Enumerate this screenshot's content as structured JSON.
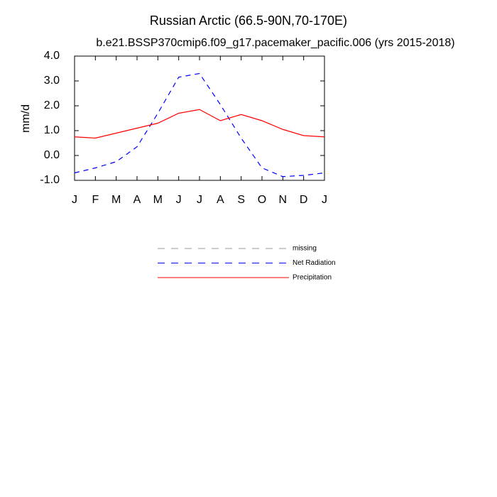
{
  "chart_data": {
    "type": "line",
    "title": "Russian Arctic (66.5-90N,70-170E)",
    "subtitle": "b.e21.BSSP370cmip6.f09_g17.pacemaker_pacific.006 (yrs 2015-2018)",
    "y_label": "mm/d",
    "categories": [
      "J",
      "F",
      "M",
      "A",
      "M",
      "J",
      "J",
      "A",
      "S",
      "O",
      "N",
      "D",
      "J"
    ],
    "ylim": [
      -1,
      4
    ],
    "yticks": [
      {
        "value": -1,
        "label": "-1.0"
      },
      {
        "value": 0,
        "label": "0.0"
      },
      {
        "value": 1,
        "label": "1.0"
      },
      {
        "value": 2,
        "label": "2.0"
      },
      {
        "value": 3,
        "label": "3.0"
      },
      {
        "value": 4,
        "label": "4.0"
      }
    ],
    "series": [
      {
        "name": "missing",
        "color": "#999999",
        "dashed": true,
        "values": [
          null,
          null,
          null,
          null,
          null,
          null,
          null,
          null,
          null,
          null,
          null,
          null,
          null
        ]
      },
      {
        "name": "Net Radiation",
        "color": "#0000ff",
        "dashed": true,
        "values": [
          -0.7,
          -0.5,
          -0.25,
          0.35,
          1.7,
          3.15,
          3.3,
          2.05,
          0.7,
          -0.5,
          -0.85,
          -0.8,
          -0.7
        ]
      },
      {
        "name": "Precipitation",
        "color": "#ff0000",
        "dashed": false,
        "values": [
          0.75,
          0.7,
          0.9,
          1.1,
          1.3,
          1.7,
          1.85,
          1.4,
          1.65,
          1.4,
          1.05,
          0.8,
          0.75
        ]
      }
    ]
  }
}
